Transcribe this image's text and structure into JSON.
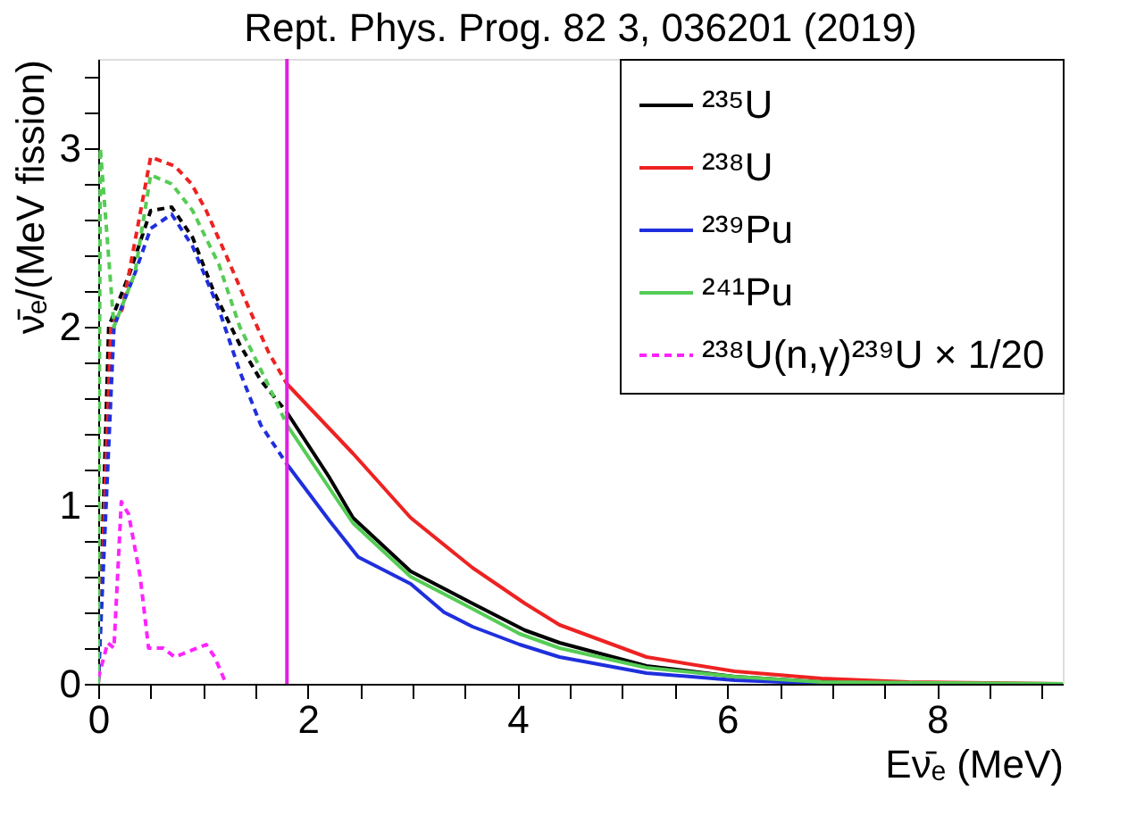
{
  "chart_data": {
    "type": "line",
    "title": "Rept. Phys. Prog. 82 3, 036201 (2019)",
    "xlabel": "Eν̄ₑ (MeV)",
    "ylabel": "ν̄ₑ/(MeV fission)",
    "xlim": [
      0,
      9.2
    ],
    "ylim": [
      0,
      3.5
    ],
    "xticks": [
      0,
      {
        "value": 0.5,
        "label": null
      },
      {
        "value": 1,
        "label": null
      },
      {
        "value": 1.5,
        "label": null
      },
      2,
      {
        "value": 2.5,
        "label": null
      },
      {
        "value": 3,
        "label": null
      },
      {
        "value": 3.5,
        "label": null
      },
      4,
      {
        "value": 4.5,
        "label": null
      },
      {
        "value": 5,
        "label": null
      },
      {
        "value": 5.5,
        "label": null
      },
      6,
      {
        "value": 6.5,
        "label": null
      },
      {
        "value": 7,
        "label": null
      },
      {
        "value": 7.5,
        "label": null
      },
      8,
      {
        "value": 8.5,
        "label": null
      },
      {
        "value": 9,
        "label": null
      }
    ],
    "yticks": [
      0,
      {
        "value": 0.2,
        "label": null
      },
      {
        "value": 0.4,
        "label": null
      },
      {
        "value": 0.6,
        "label": null
      },
      {
        "value": 0.8,
        "label": null
      },
      1,
      {
        "value": 1.2,
        "label": null
      },
      {
        "value": 1.4,
        "label": null
      },
      {
        "value": 1.6,
        "label": null
      },
      {
        "value": 1.8,
        "label": null
      },
      2,
      {
        "value": 2.2,
        "label": null
      },
      {
        "value": 2.4,
        "label": null
      },
      {
        "value": 2.6,
        "label": null
      },
      {
        "value": 2.8,
        "label": null
      },
      3,
      {
        "value": 3.2,
        "label": null
      },
      {
        "value": 3.4,
        "label": null
      }
    ],
    "grid": false,
    "legend": "top right",
    "marker": "none",
    "ref_lines": [
      {
        "axis": "x",
        "value": 1.8,
        "label": null,
        "color": "#e020e0",
        "line_style": "solid"
      }
    ],
    "series": [
      {
        "name": "²³⁵U",
        "color": "#000000",
        "line_style": "solid",
        "x": [
          1.8,
          2.2,
          2.43,
          2.98,
          3.57,
          4.07,
          4.4,
          5.23,
          6.07,
          6.9,
          8.0,
          9.2
        ],
        "values": [
          1.52,
          1.16,
          0.93,
          0.63,
          0.45,
          0.3,
          0.23,
          0.1,
          0.04,
          0.01,
          0.0,
          0.0
        ]
      },
      {
        "name": "²³⁸U",
        "color": "#ee2222",
        "line_style": "solid",
        "x": [
          1.8,
          2.43,
          2.98,
          3.57,
          4.07,
          4.4,
          5.23,
          6.07,
          6.9,
          7.73,
          9.2
        ],
        "values": [
          1.68,
          1.29,
          0.93,
          0.65,
          0.45,
          0.33,
          0.15,
          0.07,
          0.03,
          0.01,
          0.0
        ]
      },
      {
        "name": "²³⁹Pu",
        "color": "#1f2fdd",
        "line_style": "solid",
        "x": [
          1.8,
          2.21,
          2.48,
          2.98,
          3.3,
          3.57,
          4.02,
          4.4,
          5.23,
          6.07,
          7.0,
          9.2
        ],
        "values": [
          1.23,
          0.91,
          0.71,
          0.56,
          0.4,
          0.32,
          0.22,
          0.15,
          0.06,
          0.02,
          0.0,
          0.0
        ]
      },
      {
        "name": "²⁴¹Pu",
        "color": "#55cc55",
        "line_style": "solid",
        "x": [
          1.8,
          2.2,
          2.43,
          2.98,
          3.57,
          4.02,
          4.4,
          5.23,
          6.07,
          6.9,
          9.2
        ],
        "values": [
          1.45,
          1.1,
          0.9,
          0.6,
          0.42,
          0.28,
          0.2,
          0.09,
          0.04,
          0.01,
          0.0
        ]
      },
      {
        "name": "²³⁸U(n,γ)²³⁹U × 1/20",
        "color": "#ff22ff",
        "line_style": "dashed",
        "x": [
          0,
          0.09,
          0.15,
          0.22,
          0.29,
          0.4,
          0.48,
          0.62,
          0.73,
          1.03,
          1.11,
          1.22
        ],
        "values": [
          0.03,
          0.23,
          0.2,
          1.02,
          0.95,
          0.6,
          0.2,
          0.2,
          0.15,
          0.22,
          0.15,
          0.0
        ]
      },
      {
        "color": "#000000",
        "line_style": "dashed",
        "x": [
          0,
          0.1,
          0.3,
          0.5,
          0.7,
          0.9,
          1.1,
          1.35,
          1.55,
          1.8
        ],
        "values": [
          0.0,
          2.0,
          2.3,
          2.65,
          2.67,
          2.5,
          2.2,
          1.9,
          1.7,
          1.52
        ]
      },
      {
        "color": "#ee2222",
        "line_style": "dashed",
        "x": [
          0,
          0.12,
          0.23,
          0.5,
          0.73,
          0.89,
          1.03,
          1.22,
          1.44,
          1.63,
          1.8
        ],
        "values": [
          0.0,
          2.0,
          2.1,
          2.95,
          2.9,
          2.8,
          2.65,
          2.4,
          2.1,
          1.85,
          1.68
        ]
      },
      {
        "color": "#1f2fdd",
        "line_style": "dashed",
        "x": [
          0,
          0.15,
          0.35,
          0.5,
          0.7,
          0.9,
          1.15,
          1.35,
          1.55,
          1.8
        ],
        "values": [
          0.0,
          2.0,
          2.3,
          2.55,
          2.63,
          2.45,
          2.1,
          1.75,
          1.45,
          1.23
        ]
      },
      {
        "color": "#55cc55",
        "line_style": "dashed",
        "x": [
          0,
          0.02,
          0.15,
          0.35,
          0.5,
          0.7,
          0.9,
          1.15,
          1.35,
          1.6,
          1.8
        ],
        "values": [
          0.0,
          3.0,
          2.0,
          2.3,
          2.85,
          2.8,
          2.65,
          2.35,
          2.0,
          1.7,
          1.45
        ]
      }
    ]
  }
}
